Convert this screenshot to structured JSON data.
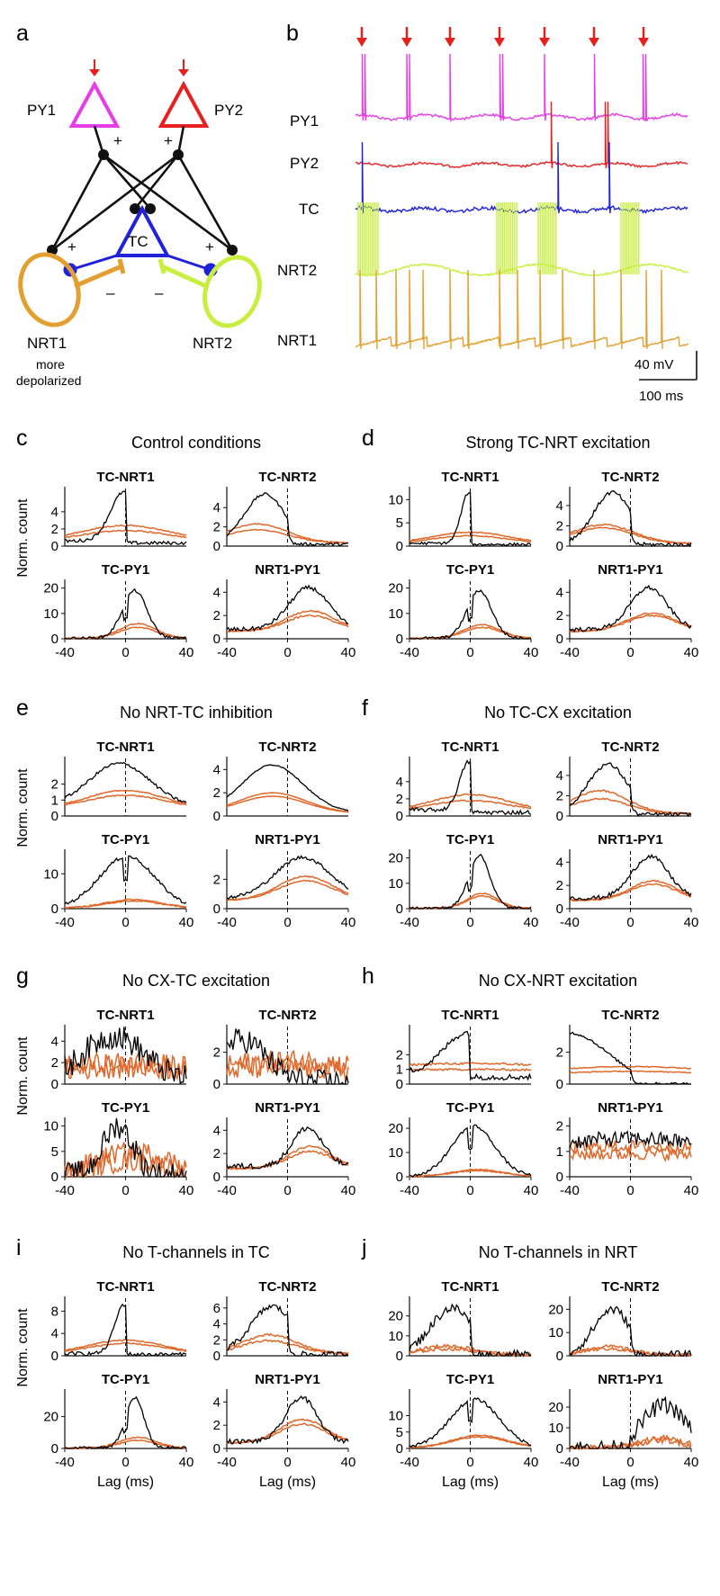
{
  "chart_data": {
    "type": "line",
    "x_label": "Lag (ms)",
    "y_label": "Norm. count",
    "x_ticks": [
      "-40",
      "0",
      "40"
    ],
    "panel_letters": [
      "a",
      "b",
      "c",
      "d",
      "e",
      "f",
      "g",
      "h",
      "i",
      "j"
    ],
    "diagram": {
      "cells": [
        "PY1",
        "PY2",
        "TC",
        "NRT1",
        "NRT2"
      ],
      "signs": {
        "plus": "+",
        "minus": "–"
      },
      "note": [
        "more",
        "depolarized"
      ]
    },
    "traces": {
      "labels": [
        "PY1",
        "PY2",
        "TC",
        "NRT2",
        "NRT1"
      ],
      "scale_v": "40 mV",
      "scale_t": "100 ms",
      "stimulus_count": 7
    },
    "colors": {
      "model": "#000000",
      "shuffle": "#e0682a",
      "py1": "#e63de6",
      "py2": "#e82020",
      "tc": "#1f22d8",
      "nrt2": "#c8ef40",
      "nrt1": "#e3a030",
      "stim": "#e8201c"
    },
    "panels": [
      {
        "title": "Control conditions",
        "subplots": [
          {
            "name": "TC-NRT1",
            "yticks": [
              "0",
              "2",
              "4"
            ],
            "ymax": 6.5,
            "peak": 6.3,
            "center": -1,
            "width": 9,
            "base": 0.6,
            "shape": "left_cut",
            "noise": 0.2,
            "sh_peak": 2.4,
            "sh2": 1.8,
            "sh_center": 0,
            "sh_width": 30
          },
          {
            "name": "TC-NRT2",
            "yticks": [
              "0",
              "2",
              "4"
            ],
            "ymax": 5.8,
            "peak": 5.4,
            "center": -15,
            "width": 13,
            "base": 0.4,
            "shape": "right_cut",
            "noise": 0.15,
            "sh_peak": 2.3,
            "sh2": 1.7,
            "sh_center": -20,
            "sh_width": 20
          },
          {
            "name": "TC-PY1",
            "yticks": [
              "0",
              "10",
              "20"
            ],
            "ymax": 22,
            "peak": 19,
            "center": 6,
            "width": 8,
            "base": 0.2,
            "shape": "split",
            "noise": 0.6,
            "sh_peak": 6,
            "sh2": 4.5,
            "sh_center": 8,
            "sh_width": 12
          },
          {
            "name": "NRT1-PY1",
            "yticks": [
              "0",
              "2",
              "4"
            ],
            "ymax": 4.8,
            "peak": 4.4,
            "center": 14,
            "width": 13,
            "base": 0.8,
            "shape": "bell",
            "noise": 0.18,
            "sh_peak": 2.4,
            "sh2": 2.0,
            "sh_center": 15,
            "sh_width": 16
          }
        ]
      },
      {
        "title": "Strong TC-NRT excitation",
        "subplots": [
          {
            "name": "TC-NRT1",
            "yticks": [
              "0",
              "5",
              "10"
            ],
            "ymax": 12,
            "peak": 11.5,
            "center": -1,
            "width": 5,
            "base": 0.6,
            "shape": "left_cut",
            "noise": 0.3,
            "sh_peak": 3,
            "sh2": 2.2,
            "sh_center": 0,
            "sh_width": 25
          },
          {
            "name": "TC-NRT2",
            "yticks": [
              "0",
              "2",
              "4"
            ],
            "ymax": 5.5,
            "peak": 5.3,
            "center": -12,
            "width": 12,
            "base": 0.3,
            "shape": "right_cut",
            "noise": 0.2,
            "sh_peak": 2.1,
            "sh2": 1.8,
            "sh_center": -18,
            "sh_width": 20
          },
          {
            "name": "TC-PY1",
            "yticks": [
              "0",
              "10",
              "20"
            ],
            "ymax": 22,
            "peak": 19,
            "center": 6,
            "width": 8,
            "base": 0.2,
            "shape": "split",
            "noise": 0.6,
            "sh_peak": 5.5,
            "sh2": 4.5,
            "sh_center": 8,
            "sh_width": 12
          },
          {
            "name": "NRT1-PY1",
            "yticks": [
              "0",
              "2",
              "4"
            ],
            "ymax": 4.8,
            "peak": 4.4,
            "center": 12,
            "width": 12,
            "base": 0.8,
            "shape": "bell",
            "noise": 0.18,
            "sh_peak": 2.2,
            "sh2": 2.0,
            "sh_center": 14,
            "sh_width": 16
          }
        ]
      },
      {
        "title": "No NRT-TC inhibition",
        "subplots": [
          {
            "name": "TC-NRT1",
            "yticks": [
              "0",
              "1",
              "2"
            ],
            "ymax": 3.5,
            "peak": 3.3,
            "center": -4,
            "width": 20,
            "base": 0.6,
            "shape": "bell",
            "noise": 0.1,
            "sh_peak": 1.6,
            "sh2": 1.3,
            "sh_center": 0,
            "sh_width": 25
          },
          {
            "name": "TC-NRT2",
            "yticks": [
              "0",
              "2",
              "4"
            ],
            "ymax": 4.8,
            "peak": 4.4,
            "center": -10,
            "width": 20,
            "base": 0.3,
            "shape": "bell",
            "noise": 0.05,
            "sh_peak": 2.0,
            "sh2": 1.7,
            "sh_center": -10,
            "sh_width": 22
          },
          {
            "name": "TC-PY1",
            "yticks": [
              "0",
              "10"
            ],
            "ymax": 16,
            "peak": 15,
            "center": 1,
            "width": 18,
            "base": 0.2,
            "shape": "split",
            "noise": 0.5,
            "sh_peak": 2.6,
            "sh2": 2.2,
            "sh_center": 5,
            "sh_width": 18
          },
          {
            "name": "NRT1-PY1",
            "yticks": [
              "0",
              "2"
            ],
            "ymax": 3.8,
            "peak": 3.5,
            "center": 10,
            "width": 18,
            "base": 0.7,
            "shape": "bell",
            "noise": 0.12,
            "sh_peak": 2.2,
            "sh2": 1.9,
            "sh_center": 12,
            "sh_width": 18
          }
        ]
      },
      {
        "title": "No TC-CX excitation",
        "subplots": [
          {
            "name": "TC-NRT1",
            "yticks": [
              "0",
              "2",
              "4"
            ],
            "ymax": 6.5,
            "peak": 6.3,
            "center": -1,
            "width": 6,
            "base": 0.7,
            "shape": "left_cut",
            "noise": 0.25,
            "sh_peak": 2.5,
            "sh2": 1.8,
            "sh_center": 0,
            "sh_width": 25
          },
          {
            "name": "TC-NRT2",
            "yticks": [
              "0",
              "2",
              "4"
            ],
            "ymax": 5.5,
            "peak": 5.1,
            "center": -15,
            "width": 13,
            "base": 0.3,
            "shape": "right_cut",
            "noise": 0.2,
            "sh_peak": 2.5,
            "sh2": 1.7,
            "sh_center": -20,
            "sh_width": 18
          },
          {
            "name": "TC-PY1",
            "yticks": [
              "0",
              "10",
              "20"
            ],
            "ymax": 22,
            "peak": 21,
            "center": 6,
            "width": 7,
            "base": 0.2,
            "shape": "split",
            "noise": 0.6,
            "sh_peak": 6,
            "sh2": 5,
            "sh_center": 8,
            "sh_width": 10
          },
          {
            "name": "NRT1-PY1",
            "yticks": [
              "0",
              "2",
              "4"
            ],
            "ymax": 4.8,
            "peak": 4.5,
            "center": 13,
            "width": 12,
            "base": 0.9,
            "shape": "bell",
            "noise": 0.18,
            "sh_peak": 2.4,
            "sh2": 2.1,
            "sh_center": 15,
            "sh_width": 15
          }
        ]
      },
      {
        "title": "No CX-TC excitation",
        "subplots": [
          {
            "name": "TC-NRT1",
            "yticks": [
              "0",
              "2",
              "4"
            ],
            "ymax": 5.2,
            "peak": 4.5,
            "center": -8,
            "width": 20,
            "base": 0.3,
            "shape": "noisy",
            "noise": 1.2,
            "sh_peak": 2.0,
            "sh2": 1.5,
            "sh_center": 0,
            "sh_width": 60
          },
          {
            "name": "TC-NRT2",
            "yticks": [
              "0",
              "2"
            ],
            "ymax": 3.5,
            "peak": 2.8,
            "center": -30,
            "width": 16,
            "base": 0.1,
            "shape": "noisy",
            "noise": 0.8,
            "sh_peak": 1.5,
            "sh2": 1.0,
            "sh_center": 0,
            "sh_width": 60
          },
          {
            "name": "TC-PY1",
            "yticks": [
              "0",
              "5",
              "10"
            ],
            "ymax": 11,
            "peak": 10,
            "center": -5,
            "width": 10,
            "base": 0.3,
            "shape": "noisy",
            "noise": 2.5,
            "sh_peak": 5,
            "sh2": 3,
            "sh_center": 5,
            "sh_width": 25
          },
          {
            "name": "NRT1-PY1",
            "yticks": [
              "0",
              "2",
              "4"
            ],
            "ymax": 4.8,
            "peak": 4.2,
            "center": 13,
            "width": 10,
            "base": 0.9,
            "shape": "bell",
            "noise": 0.25,
            "sh_peak": 2.6,
            "sh2": 2.2,
            "sh_center": 15,
            "sh_width": 14
          }
        ]
      },
      {
        "title": "No CX-NRT excitation",
        "subplots": [
          {
            "name": "TC-NRT1",
            "yticks": [
              "0",
              "1",
              "2"
            ],
            "ymax": 3.8,
            "peak": 3.5,
            "center": -2,
            "width": 15,
            "base": 0.8,
            "shape": "left_cut",
            "noise": 0.2,
            "sh_peak": 1.4,
            "sh2": 1.0,
            "sh_center": 0,
            "sh_width": 80
          },
          {
            "name": "TC-NRT2",
            "yticks": [
              "0",
              "2"
            ],
            "ymax": 3.5,
            "peak": 3.2,
            "center": -40,
            "width": 25,
            "base": 0.05,
            "shape": "right_cut",
            "noise": 0.08,
            "sh_peak": 1.1,
            "sh2": 0.8,
            "sh_center": 0,
            "sh_width": 80
          },
          {
            "name": "TC-PY1",
            "yticks": [
              "0",
              "10",
              "20"
            ],
            "ymax": 23,
            "peak": 21,
            "center": 2,
            "width": 14,
            "base": 0.2,
            "shape": "split",
            "noise": 0.6,
            "sh_peak": 3.0,
            "sh2": 2.5,
            "sh_center": 5,
            "sh_width": 16
          },
          {
            "name": "NRT1-PY1",
            "yticks": [
              "0",
              "1",
              "2"
            ],
            "ymax": 2.2,
            "peak": 1.5,
            "center": 0,
            "width": 60,
            "base": 0.8,
            "shape": "noisy",
            "noise": 0.3,
            "sh_peak": 1.2,
            "sh2": 0.9,
            "sh_center": 0,
            "sh_width": 80
          }
        ]
      },
      {
        "title": "No T-channels in TC",
        "subplots": [
          {
            "name": "TC-NRT1",
            "yticks": [
              "0",
              "4",
              "8"
            ],
            "ymax": 10,
            "peak": 9.2,
            "center": -1,
            "width": 6,
            "base": 0.4,
            "shape": "left_cut",
            "noise": 0.35,
            "sh_peak": 2.8,
            "sh2": 2.2,
            "sh_center": 0,
            "sh_width": 25
          },
          {
            "name": "TC-NRT2",
            "yticks": [
              "0",
              "2",
              "4",
              "6"
            ],
            "ymax": 7,
            "peak": 6.2,
            "center": -10,
            "width": 14,
            "base": 0.3,
            "shape": "right_cut",
            "noise": 0.4,
            "sh_peak": 2.6,
            "sh2": 1.9,
            "sh_center": -12,
            "sh_width": 18
          },
          {
            "name": "TC-PY1",
            "yticks": [
              "0",
              "20"
            ],
            "ymax": 35,
            "peak": 32,
            "center": 6,
            "width": 6,
            "base": 0.3,
            "shape": "split",
            "noise": 1.0,
            "sh_peak": 7,
            "sh2": 5,
            "sh_center": 8,
            "sh_width": 12
          },
          {
            "name": "NRT1-PY1",
            "yticks": [
              "0",
              "2",
              "4"
            ],
            "ymax": 4.8,
            "peak": 4.4,
            "center": 9,
            "width": 10,
            "base": 0.6,
            "shape": "bell",
            "noise": 0.2,
            "sh_peak": 2.5,
            "sh2": 2.1,
            "sh_center": 10,
            "sh_width": 15
          }
        ]
      },
      {
        "title": "No T-channels in NRT",
        "subplots": [
          {
            "name": "TC-NRT1",
            "yticks": [
              "0",
              "10",
              "20"
            ],
            "ymax": 28,
            "peak": 24,
            "center": -12,
            "width": 14,
            "base": 0.5,
            "shape": "right_cut",
            "noise": 2.5,
            "sh_peak": 5,
            "sh2": 3.5,
            "sh_center": -15,
            "sh_width": 18
          },
          {
            "name": "TC-NRT2",
            "yticks": [
              "0",
              "10",
              "20"
            ],
            "ymax": 24,
            "peak": 20,
            "center": -12,
            "width": 12,
            "base": 0.3,
            "shape": "right_cut",
            "noise": 2.0,
            "sh_peak": 4,
            "sh2": 3,
            "sh_center": -15,
            "sh_width": 16
          },
          {
            "name": "TC-PY1",
            "yticks": [
              "0",
              "5",
              "10"
            ],
            "ymax": 17,
            "peak": 15,
            "center": 3,
            "width": 16,
            "base": 0.2,
            "shape": "split",
            "noise": 0.5,
            "sh_peak": 4,
            "sh2": 3.5,
            "sh_center": 6,
            "sh_width": 18
          },
          {
            "name": "NRT1-PY1",
            "yticks": [
              "0",
              "10",
              "20"
            ],
            "ymax": 27,
            "peak": 21,
            "center": 22,
            "width": 14,
            "base": 0.3,
            "shape": "left_cut_pos",
            "noise": 4,
            "sh_peak": 5,
            "sh2": 4,
            "sh_center": 20,
            "sh_width": 14
          }
        ]
      }
    ]
  }
}
